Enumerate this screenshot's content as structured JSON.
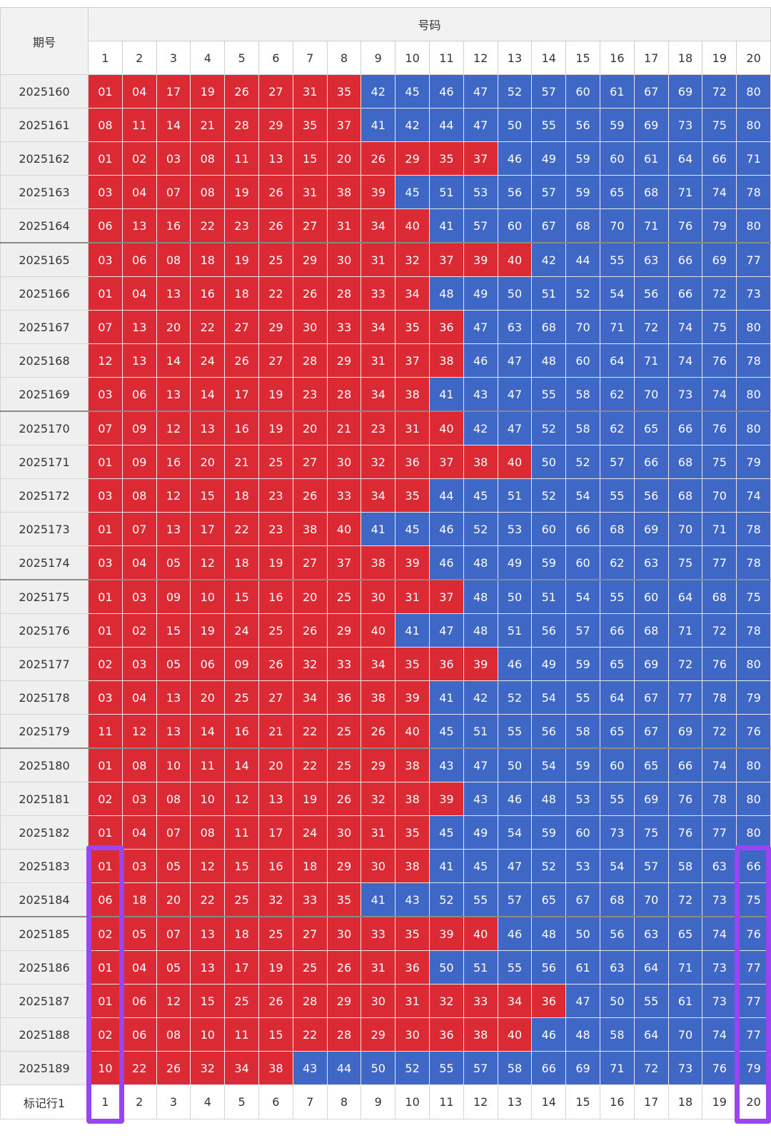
{
  "header": {
    "period_label": "期号",
    "group_label": "号码",
    "columns": [
      "1",
      "2",
      "3",
      "4",
      "5",
      "6",
      "7",
      "8",
      "9",
      "10",
      "11",
      "12",
      "13",
      "14",
      "15",
      "16",
      "17",
      "18",
      "19",
      "20"
    ]
  },
  "colors": {
    "red": "#dc2a35",
    "blue": "#3f67c6",
    "marker": "#9b45f2"
  },
  "rows": [
    {
      "period": "2025160",
      "nums": [
        "01",
        "04",
        "17",
        "19",
        "26",
        "27",
        "31",
        "35",
        "42",
        "45",
        "46",
        "47",
        "52",
        "57",
        "60",
        "61",
        "67",
        "69",
        "72",
        "80"
      ]
    },
    {
      "period": "2025161",
      "nums": [
        "08",
        "11",
        "14",
        "21",
        "28",
        "29",
        "35",
        "37",
        "41",
        "42",
        "44",
        "47",
        "50",
        "55",
        "56",
        "59",
        "69",
        "73",
        "75",
        "80"
      ]
    },
    {
      "period": "2025162",
      "nums": [
        "01",
        "02",
        "03",
        "08",
        "11",
        "13",
        "15",
        "20",
        "26",
        "29",
        "35",
        "37",
        "46",
        "49",
        "59",
        "60",
        "61",
        "64",
        "66",
        "71"
      ]
    },
    {
      "period": "2025163",
      "nums": [
        "03",
        "04",
        "07",
        "08",
        "19",
        "26",
        "31",
        "38",
        "39",
        "45",
        "51",
        "53",
        "56",
        "57",
        "59",
        "65",
        "68",
        "71",
        "74",
        "78"
      ]
    },
    {
      "period": "2025164",
      "nums": [
        "06",
        "13",
        "16",
        "22",
        "23",
        "26",
        "27",
        "31",
        "34",
        "40",
        "41",
        "57",
        "60",
        "67",
        "68",
        "70",
        "71",
        "76",
        "79",
        "80"
      ]
    },
    {
      "period": "2025165",
      "nums": [
        "03",
        "06",
        "08",
        "18",
        "19",
        "25",
        "29",
        "30",
        "31",
        "32",
        "37",
        "39",
        "40",
        "42",
        "44",
        "55",
        "63",
        "66",
        "69",
        "77"
      ]
    },
    {
      "period": "2025166",
      "nums": [
        "01",
        "04",
        "13",
        "16",
        "18",
        "22",
        "26",
        "28",
        "33",
        "34",
        "48",
        "49",
        "50",
        "51",
        "52",
        "54",
        "56",
        "66",
        "72",
        "73"
      ]
    },
    {
      "period": "2025167",
      "nums": [
        "07",
        "13",
        "20",
        "22",
        "27",
        "29",
        "30",
        "33",
        "34",
        "35",
        "36",
        "47",
        "63",
        "68",
        "70",
        "71",
        "72",
        "74",
        "75",
        "80"
      ]
    },
    {
      "period": "2025168",
      "nums": [
        "12",
        "13",
        "14",
        "24",
        "26",
        "27",
        "28",
        "29",
        "31",
        "37",
        "38",
        "46",
        "47",
        "48",
        "60",
        "64",
        "71",
        "74",
        "76",
        "78"
      ]
    },
    {
      "period": "2025169",
      "nums": [
        "03",
        "06",
        "13",
        "14",
        "17",
        "19",
        "23",
        "28",
        "34",
        "38",
        "41",
        "43",
        "47",
        "55",
        "58",
        "62",
        "70",
        "73",
        "74",
        "80"
      ]
    },
    {
      "period": "2025170",
      "nums": [
        "07",
        "09",
        "12",
        "13",
        "16",
        "19",
        "20",
        "21",
        "23",
        "31",
        "40",
        "42",
        "47",
        "52",
        "58",
        "62",
        "65",
        "66",
        "76",
        "80"
      ]
    },
    {
      "period": "2025171",
      "nums": [
        "01",
        "09",
        "16",
        "20",
        "21",
        "25",
        "27",
        "30",
        "32",
        "36",
        "37",
        "38",
        "40",
        "50",
        "52",
        "57",
        "66",
        "68",
        "75",
        "79"
      ]
    },
    {
      "period": "2025172",
      "nums": [
        "03",
        "08",
        "12",
        "15",
        "18",
        "23",
        "26",
        "33",
        "34",
        "35",
        "44",
        "45",
        "51",
        "52",
        "54",
        "55",
        "56",
        "68",
        "70",
        "74"
      ]
    },
    {
      "period": "2025173",
      "nums": [
        "01",
        "07",
        "13",
        "17",
        "22",
        "23",
        "38",
        "40",
        "41",
        "45",
        "46",
        "52",
        "53",
        "60",
        "66",
        "68",
        "69",
        "70",
        "71",
        "78"
      ]
    },
    {
      "period": "2025174",
      "nums": [
        "03",
        "04",
        "05",
        "12",
        "18",
        "19",
        "27",
        "37",
        "38",
        "39",
        "46",
        "48",
        "49",
        "59",
        "60",
        "62",
        "63",
        "75",
        "77",
        "78"
      ]
    },
    {
      "period": "2025175",
      "nums": [
        "01",
        "03",
        "09",
        "10",
        "15",
        "16",
        "20",
        "25",
        "30",
        "31",
        "37",
        "48",
        "50",
        "51",
        "54",
        "55",
        "60",
        "64",
        "68",
        "75"
      ]
    },
    {
      "period": "2025176",
      "nums": [
        "01",
        "02",
        "15",
        "19",
        "24",
        "25",
        "26",
        "29",
        "40",
        "41",
        "47",
        "48",
        "51",
        "56",
        "57",
        "66",
        "68",
        "71",
        "72",
        "78"
      ]
    },
    {
      "period": "2025177",
      "nums": [
        "02",
        "03",
        "05",
        "06",
        "09",
        "26",
        "32",
        "33",
        "34",
        "35",
        "36",
        "39",
        "46",
        "49",
        "59",
        "65",
        "69",
        "72",
        "76",
        "80"
      ]
    },
    {
      "period": "2025178",
      "nums": [
        "03",
        "04",
        "13",
        "20",
        "25",
        "27",
        "34",
        "36",
        "38",
        "39",
        "41",
        "42",
        "52",
        "54",
        "55",
        "64",
        "67",
        "77",
        "78",
        "79"
      ]
    },
    {
      "period": "2025179",
      "nums": [
        "11",
        "12",
        "13",
        "14",
        "16",
        "21",
        "22",
        "25",
        "26",
        "40",
        "45",
        "51",
        "55",
        "56",
        "58",
        "65",
        "67",
        "69",
        "72",
        "76"
      ]
    },
    {
      "period": "2025180",
      "nums": [
        "01",
        "08",
        "10",
        "11",
        "14",
        "20",
        "22",
        "25",
        "29",
        "38",
        "43",
        "47",
        "50",
        "54",
        "59",
        "60",
        "65",
        "66",
        "74",
        "80"
      ]
    },
    {
      "period": "2025181",
      "nums": [
        "02",
        "03",
        "08",
        "10",
        "12",
        "13",
        "19",
        "26",
        "32",
        "38",
        "39",
        "43",
        "46",
        "48",
        "53",
        "55",
        "69",
        "76",
        "78",
        "80"
      ]
    },
    {
      "period": "2025182",
      "nums": [
        "01",
        "04",
        "07",
        "08",
        "11",
        "17",
        "24",
        "30",
        "31",
        "35",
        "45",
        "49",
        "54",
        "59",
        "60",
        "73",
        "75",
        "76",
        "77",
        "80"
      ]
    },
    {
      "period": "2025183",
      "nums": [
        "01",
        "03",
        "05",
        "12",
        "15",
        "16",
        "18",
        "29",
        "30",
        "38",
        "41",
        "45",
        "47",
        "52",
        "53",
        "54",
        "57",
        "58",
        "63",
        "66"
      ]
    },
    {
      "period": "2025184",
      "nums": [
        "06",
        "18",
        "20",
        "22",
        "25",
        "32",
        "33",
        "35",
        "41",
        "43",
        "52",
        "55",
        "57",
        "65",
        "67",
        "68",
        "70",
        "72",
        "73",
        "75"
      ]
    },
    {
      "period": "2025185",
      "nums": [
        "02",
        "05",
        "07",
        "13",
        "18",
        "25",
        "27",
        "30",
        "33",
        "35",
        "39",
        "40",
        "46",
        "48",
        "50",
        "56",
        "63",
        "65",
        "74",
        "76"
      ]
    },
    {
      "period": "2025186",
      "nums": [
        "01",
        "04",
        "05",
        "13",
        "17",
        "19",
        "25",
        "26",
        "31",
        "36",
        "50",
        "51",
        "55",
        "56",
        "61",
        "63",
        "64",
        "71",
        "73",
        "77"
      ]
    },
    {
      "period": "2025187",
      "nums": [
        "01",
        "06",
        "12",
        "15",
        "25",
        "26",
        "28",
        "29",
        "30",
        "31",
        "32",
        "33",
        "34",
        "36",
        "47",
        "50",
        "55",
        "61",
        "73",
        "77"
      ]
    },
    {
      "period": "2025188",
      "nums": [
        "02",
        "06",
        "08",
        "10",
        "11",
        "15",
        "22",
        "28",
        "29",
        "30",
        "36",
        "38",
        "40",
        "46",
        "48",
        "58",
        "64",
        "70",
        "74",
        "77"
      ]
    },
    {
      "period": "2025189",
      "nums": [
        "10",
        "22",
        "26",
        "32",
        "34",
        "38",
        "43",
        "44",
        "50",
        "52",
        "55",
        "57",
        "58",
        "66",
        "69",
        "71",
        "72",
        "73",
        "76",
        "79"
      ]
    }
  ],
  "footer": {
    "label": "标记行1",
    "values": [
      "1",
      "2",
      "3",
      "4",
      "5",
      "6",
      "7",
      "8",
      "9",
      "10",
      "11",
      "12",
      "13",
      "14",
      "15",
      "16",
      "17",
      "18",
      "19",
      "20"
    ]
  }
}
